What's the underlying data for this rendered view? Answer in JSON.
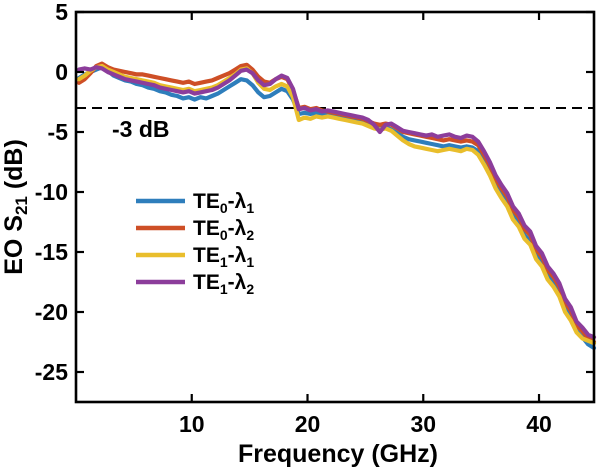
{
  "figure": {
    "background": "#ffffff",
    "axis_color": "#000000",
    "text_color": "#000000"
  },
  "chart_data": {
    "type": "line",
    "title": "",
    "xlabel": "Frequency (GHz)",
    "ylabel": "EO S₂₁ (dB)",
    "xlim": [
      0,
      44.75
    ],
    "ylim": [
      -27.5,
      5
    ],
    "xticks": [
      10,
      20,
      30,
      40
    ],
    "yticks": [
      5,
      0,
      -5,
      -10,
      -15,
      -20,
      -25
    ],
    "grid": false,
    "box": true,
    "tick_direction": "in",
    "legend_position": "inside-left-middle",
    "threshold": {
      "value": -3,
      "label": "-3 dB",
      "style": "dashed",
      "color": "#000000"
    },
    "x_start": 0.25,
    "x_step": 0.5,
    "series": [
      {
        "name": "TE₀-λ₁",
        "color": "#2E7EBC",
        "values": [
          -0.5,
          -0.2,
          0.0,
          0.2,
          0.4,
          0.1,
          -0.3,
          -0.5,
          -0.7,
          -0.8,
          -1.0,
          -1.1,
          -1.3,
          -1.4,
          -1.6,
          -1.7,
          -1.9,
          -2.0,
          -2.2,
          -2.1,
          -2.3,
          -2.1,
          -2.2,
          -2.0,
          -1.8,
          -1.5,
          -1.2,
          -0.9,
          -0.6,
          -0.7,
          -1.1,
          -1.7,
          -2.1,
          -2.0,
          -1.7,
          -1.4,
          -1.6,
          -2.3,
          -3.5,
          -3.4,
          -3.5,
          -3.4,
          -3.6,
          -3.5,
          -3.7,
          -3.8,
          -3.9,
          -4.0,
          -4.1,
          -4.2,
          -4.4,
          -4.6,
          -4.7,
          -4.6,
          -4.8,
          -5.1,
          -5.4,
          -5.6,
          -5.7,
          -5.8,
          -5.9,
          -6.0,
          -6.1,
          -6.2,
          -6.1,
          -6.2,
          -6.3,
          -6.2,
          -6.3,
          -6.6,
          -7.4,
          -8.3,
          -9.4,
          -10.2,
          -10.9,
          -12.0,
          -12.6,
          -13.6,
          -14.1,
          -15.3,
          -15.9,
          -17.0,
          -17.6,
          -18.4,
          -19.7,
          -20.4,
          -21.6,
          -22.1,
          -22.7,
          -23.0
        ]
      },
      {
        "name": "TE₀-λ₂",
        "color": "#CE4F26",
        "values": [
          -0.9,
          -0.6,
          -0.1,
          0.5,
          0.7,
          0.4,
          0.2,
          0.1,
          0.0,
          -0.1,
          -0.2,
          -0.2,
          -0.3,
          -0.4,
          -0.5,
          -0.6,
          -0.7,
          -0.8,
          -0.9,
          -0.8,
          -1.0,
          -0.9,
          -0.8,
          -0.7,
          -0.5,
          -0.3,
          -0.1,
          0.2,
          0.5,
          0.6,
          0.2,
          -0.4,
          -0.8,
          -0.9,
          -0.6,
          -0.4,
          -0.6,
          -1.5,
          -3.0,
          -2.9,
          -3.1,
          -3.0,
          -3.2,
          -3.3,
          -3.4,
          -3.5,
          -3.6,
          -3.7,
          -3.8,
          -3.9,
          -4.1,
          -4.3,
          -4.4,
          -4.3,
          -4.4,
          -4.7,
          -5.0,
          -5.1,
          -5.2,
          -5.3,
          -5.4,
          -5.5,
          -5.6,
          -5.7,
          -5.6,
          -5.7,
          -5.8,
          -5.7,
          -5.8,
          -6.1,
          -6.9,
          -7.8,
          -8.9,
          -9.7,
          -10.4,
          -11.5,
          -12.1,
          -13.1,
          -13.6,
          -14.8,
          -15.4,
          -16.5,
          -17.1,
          -17.9,
          -19.2,
          -19.9,
          -21.1,
          -21.6,
          -22.2,
          -22.5
        ]
      },
      {
        "name": "TE₁-λ₁",
        "color": "#E9BE2C",
        "values": [
          -0.6,
          -0.3,
          0.1,
          0.4,
          0.5,
          0.2,
          0.0,
          -0.2,
          -0.4,
          -0.5,
          -0.6,
          -0.7,
          -0.8,
          -0.9,
          -1.1,
          -1.2,
          -1.3,
          -1.4,
          -1.5,
          -1.4,
          -1.6,
          -1.5,
          -1.4,
          -1.3,
          -1.1,
          -0.8,
          -0.5,
          -0.2,
          0.2,
          0.3,
          -0.1,
          -0.9,
          -1.4,
          -1.5,
          -1.2,
          -1.0,
          -1.2,
          -2.1,
          -4.0,
          -3.8,
          -3.9,
          -3.7,
          -3.8,
          -3.7,
          -3.8,
          -3.9,
          -4.0,
          -4.1,
          -4.2,
          -4.3,
          -4.5,
          -4.7,
          -4.8,
          -4.7,
          -4.9,
          -5.3,
          -5.7,
          -6.0,
          -6.2,
          -6.3,
          -6.4,
          -6.5,
          -6.6,
          -6.5,
          -6.4,
          -6.5,
          -6.6,
          -6.4,
          -6.5,
          -6.9,
          -7.7,
          -8.6,
          -9.7,
          -10.5,
          -11.2,
          -12.3,
          -12.9,
          -13.9,
          -14.4,
          -15.6,
          -16.2,
          -17.3,
          -17.9,
          -18.7,
          -20.0,
          -20.7,
          -21.7,
          -22.2,
          -22.4,
          -22.6
        ]
      },
      {
        "name": "TE₁-λ₂",
        "color": "#8C3D9B",
        "values": [
          0.2,
          0.3,
          0.2,
          0.4,
          0.3,
          0.0,
          -0.2,
          -0.4,
          -0.6,
          -0.7,
          -0.8,
          -0.9,
          -1.0,
          -1.1,
          -1.3,
          -1.4,
          -1.5,
          -1.6,
          -1.7,
          -1.6,
          -1.8,
          -1.7,
          -1.6,
          -1.5,
          -1.3,
          -1.0,
          -0.7,
          -0.3,
          0.1,
          0.2,
          -0.1,
          -0.7,
          -1.1,
          -1.0,
          -0.6,
          -0.3,
          -0.5,
          -1.4,
          -3.1,
          -3.0,
          -3.2,
          -3.1,
          -3.3,
          -3.2,
          -3.3,
          -3.4,
          -3.5,
          -3.6,
          -3.7,
          -3.8,
          -4.0,
          -4.4,
          -5.0,
          -4.4,
          -4.3,
          -4.6,
          -4.9,
          -5.0,
          -5.1,
          -5.2,
          -5.3,
          -5.2,
          -5.4,
          -5.3,
          -5.2,
          -5.4,
          -5.5,
          -5.3,
          -5.4,
          -5.8,
          -6.6,
          -7.5,
          -8.6,
          -9.4,
          -10.1,
          -11.2,
          -11.8,
          -12.8,
          -13.3,
          -14.5,
          -15.1,
          -16.2,
          -16.8,
          -17.6,
          -18.9,
          -19.6,
          -20.8,
          -21.3,
          -21.9,
          -22.1
        ]
      }
    ]
  }
}
